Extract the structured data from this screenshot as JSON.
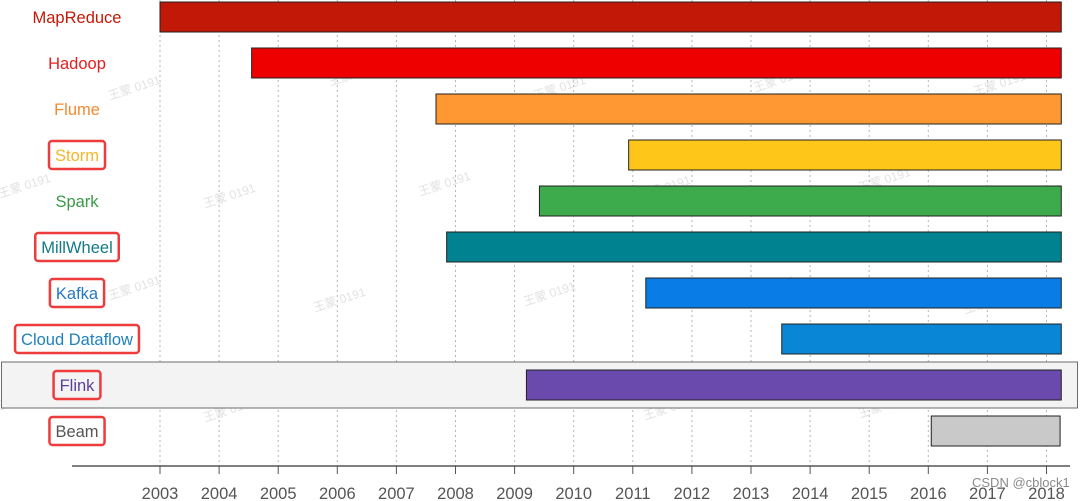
{
  "chart_data": {
    "type": "bar",
    "orientation": "horizontal",
    "title": "",
    "xlabel": "",
    "ylabel": "",
    "xlim": [
      2003,
      2018
    ],
    "x_ticks": [
      "2003",
      "2004",
      "2005",
      "2006",
      "2007",
      "2008",
      "2009",
      "2010",
      "2011",
      "2012",
      "2013",
      "2014",
      "2015",
      "2016",
      "2017",
      "2018"
    ],
    "grid": "vertical dotted",
    "legend": "none",
    "categories": [
      "MapReduce",
      "Hadoop",
      "Flume",
      "Storm",
      "Spark",
      "MillWheel",
      "Kafka",
      "Cloud Dataflow",
      "Flink",
      "Beam"
    ],
    "series": [
      {
        "values": [
          {
            "start": 2003.0,
            "end": 2018.25,
            "color": "#c21807",
            "label_color": "#c21807"
          },
          {
            "start": 2004.55,
            "end": 2018.25,
            "color": "#ee0000",
            "label_color": "#e41e1e"
          },
          {
            "start": 2007.67,
            "end": 2018.25,
            "color": "#ff9833",
            "label_color": "#f28a30"
          },
          {
            "start": 2010.93,
            "end": 2018.25,
            "color": "#ffc61a",
            "label_color": "#f5b62a"
          },
          {
            "start": 2009.42,
            "end": 2018.25,
            "color": "#3daa4b",
            "label_color": "#3a9a46"
          },
          {
            "start": 2007.85,
            "end": 2018.25,
            "color": "#008290",
            "label_color": "#137a86"
          },
          {
            "start": 2011.22,
            "end": 2018.25,
            "color": "#0a7ce6",
            "label_color": "#2478c8"
          },
          {
            "start": 2013.52,
            "end": 2018.25,
            "color": "#0a86d6",
            "label_color": "#1f80c2"
          },
          {
            "start": 2009.2,
            "end": 2018.25,
            "color": "#6a4aac",
            "label_color": "#5b3f99"
          },
          {
            "start": 2016.05,
            "end": 2018.23,
            "color": "#c9c9c9",
            "label_color": "#555555"
          }
        ]
      }
    ],
    "highlighted_rows": [
      "Storm",
      "MillWheel",
      "Kafka",
      "Cloud Dataflow",
      "Flink",
      "Beam"
    ],
    "highlight_color": "#ee3b3b",
    "selected_row": "Flink"
  },
  "watermark_text": "王蒙 0191",
  "credit_text": "CSDN @cblock1"
}
